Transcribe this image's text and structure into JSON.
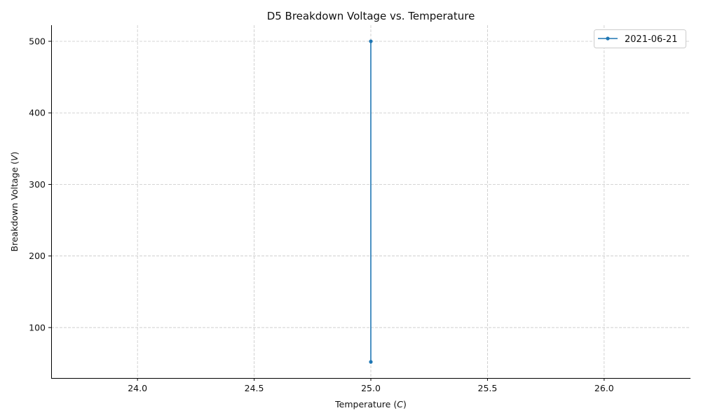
{
  "chart_data": {
    "type": "line",
    "title": "D5 Breakdown Voltage vs. Temperature",
    "xlabel_main": "Temperature (",
    "xlabel_unit": "C",
    "xlabel_close": ")",
    "ylabel_main": "Breakdown Voltage (",
    "ylabel_unit": "V",
    "ylabel_close": ")",
    "xlim": [
      23.63,
      26.37
    ],
    "ylim": [
      29.5,
      522.5
    ],
    "x_ticks": [
      24.0,
      24.5,
      25.0,
      25.5,
      26.0
    ],
    "x_tick_labels": [
      "24.0",
      "24.5",
      "25.0",
      "25.5",
      "26.0"
    ],
    "y_ticks": [
      100,
      200,
      300,
      400,
      500
    ],
    "y_tick_labels": [
      "100",
      "200",
      "300",
      "400",
      "500"
    ],
    "grid": true,
    "legend_position": "upper-right",
    "series": [
      {
        "name": "2021-06-21",
        "color": "#1f77b4",
        "marker": "circle",
        "x": [
          25.0,
          25.0
        ],
        "y": [
          500,
          52
        ]
      }
    ]
  }
}
